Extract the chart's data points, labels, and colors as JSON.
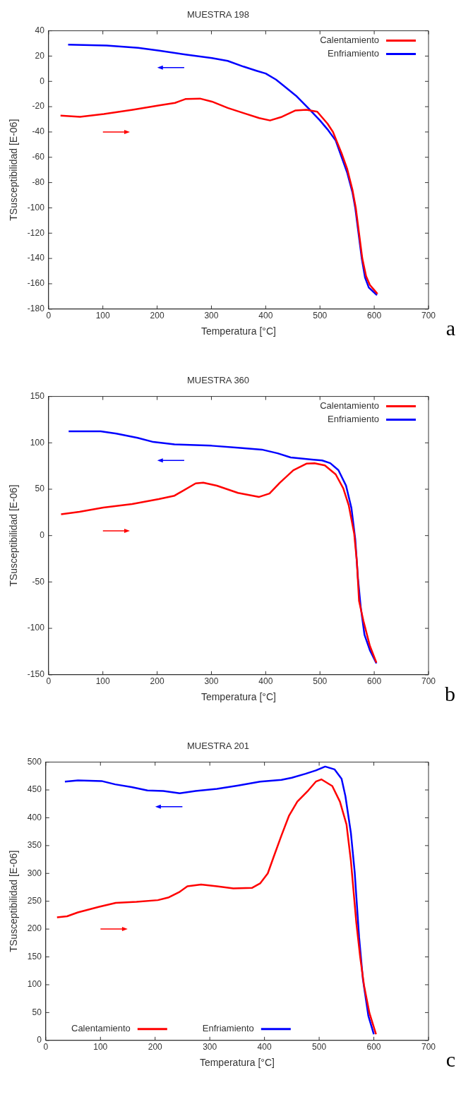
{
  "chart_data": [
    {
      "type": "line",
      "title": "MUESTRA 198",
      "xlabel": "Temperatura [°C]",
      "ylabel": "TSusceptibilidad [E-06]",
      "xlim": [
        0,
        700
      ],
      "xticks": [
        0,
        100,
        200,
        300,
        400,
        500,
        600,
        700
      ],
      "ylim": [
        -180,
        40
      ],
      "yticks": [
        -180,
        -160,
        -140,
        -120,
        -100,
        -80,
        -60,
        -40,
        -20,
        0,
        20,
        40
      ],
      "legend": "top right",
      "annotations": [
        "a"
      ],
      "series": [
        {
          "name": "Calentamiento",
          "color": "#ff0000",
          "x": [
            22,
            58,
            102,
            155,
            204,
            233,
            252,
            279,
            301,
            330,
            359,
            388,
            408,
            430,
            455,
            475,
            495,
            514,
            524,
            540,
            550,
            560,
            566,
            572,
            578,
            585,
            592,
            600,
            606
          ],
          "values": [
            -27,
            -28,
            -25.8,
            -22.5,
            -19,
            -17,
            -14,
            -13.6,
            -16,
            -21,
            -25,
            -29,
            -30.9,
            -28,
            -23,
            -22.5,
            -24,
            -33.5,
            -40,
            -57,
            -69,
            -86,
            -100,
            -120,
            -140,
            -154,
            -161,
            -165,
            -168
          ]
        },
        {
          "name": "Enfriamiento",
          "color": "#0000ff",
          "x": [
            36,
            107,
            165,
            204,
            252,
            301,
            330,
            359,
            383,
            400,
            419,
            434,
            456,
            480,
            500,
            514,
            529,
            540,
            550,
            560,
            565,
            571,
            577,
            583,
            590,
            600,
            605
          ],
          "values": [
            29,
            28.3,
            26.5,
            24.3,
            21.2,
            18.4,
            16.2,
            11.7,
            8.4,
            6.2,
            1.4,
            -3.7,
            -11.4,
            -21.8,
            -30.9,
            -38,
            -46.8,
            -60,
            -72,
            -88,
            -100,
            -120,
            -140,
            -155,
            -163,
            -167,
            -169
          ]
        }
      ]
    },
    {
      "type": "line",
      "title": "MUESTRA 360",
      "xlabel": "Temperatura [°C]",
      "ylabel": "TSusceptibilidad [E-06]",
      "xlim": [
        0,
        700
      ],
      "xticks": [
        0,
        100,
        200,
        300,
        400,
        500,
        600,
        700
      ],
      "ylim": [
        -150,
        150
      ],
      "yticks": [
        -150,
        -100,
        -50,
        0,
        50,
        100,
        150
      ],
      "legend": "top right",
      "annotations": [
        "b"
      ],
      "series": [
        {
          "name": "Calentamiento",
          "color": "#ff0000",
          "x": [
            23,
            57,
            101,
            154,
            203,
            232,
            271,
            285,
            310,
            349,
            388,
            407,
            426,
            451,
            475,
            490,
            509,
            529,
            543,
            553,
            563,
            568,
            572,
            580,
            592,
            604
          ],
          "values": [
            23,
            25.6,
            30.2,
            34,
            39.3,
            43,
            56.3,
            57,
            53.8,
            46,
            41.7,
            45.3,
            57,
            70.5,
            77.5,
            78,
            75.7,
            66,
            50.8,
            32.6,
            2.3,
            -28,
            -70.5,
            -91.7,
            -119,
            -137
          ]
        },
        {
          "name": "Enfriamiento",
          "color": "#0000ff",
          "x": [
            37,
            96,
            125,
            164,
            193,
            232,
            300,
            349,
            393,
            422,
            446,
            485,
            504,
            519,
            534,
            548,
            558,
            565,
            570,
            575,
            582,
            592,
            604
          ],
          "values": [
            112.4,
            112.4,
            110,
            105.4,
            100.9,
            98.4,
            96.9,
            94.8,
            92.7,
            88.7,
            84.2,
            82,
            81,
            78.1,
            70.5,
            53.9,
            29.6,
            -3.8,
            -46,
            -76.6,
            -106.9,
            -123.6,
            -137.8
          ]
        }
      ]
    },
    {
      "type": "line",
      "title": "MUESTRA 201",
      "xlabel": "Temperatura [°C]",
      "ylabel": "TSusceptibilidad [E-06]",
      "xlim": [
        0,
        700
      ],
      "xticks": [
        0,
        100,
        200,
        300,
        400,
        500,
        600,
        700
      ],
      "ylim": [
        0,
        500
      ],
      "yticks": [
        0,
        50,
        100,
        150,
        200,
        250,
        300,
        350,
        400,
        450,
        500
      ],
      "legend": "bottom",
      "annotations": [
        "c"
      ],
      "series": [
        {
          "name": "Calentamiento",
          "color": "#ff0000",
          "x": [
            20.6,
            39,
            58.7,
            97.9,
            128,
            166,
            205,
            225,
            245,
            259,
            284,
            313,
            343,
            377,
            392,
            406,
            418,
            431,
            445,
            460,
            480,
            494,
            504,
            524,
            538,
            550,
            558,
            568,
            575,
            582,
            592,
            604
          ],
          "values": [
            221,
            223,
            230,
            240,
            247,
            249,
            252,
            257,
            267,
            277,
            280,
            277,
            273,
            274,
            282,
            300,
            333,
            368,
            404,
            429,
            449,
            465,
            469,
            457,
            429,
            388,
            323,
            211,
            150,
            99,
            49,
            11
          ]
        },
        {
          "name": "Enfriamiento",
          "color": "#0000ff",
          "x": [
            35,
            59,
            102,
            127,
            157,
            186,
            215,
            245,
            274,
            313,
            352,
            392,
            431,
            450,
            475,
            494,
            511,
            528,
            541,
            548,
            558,
            565,
            573,
            580,
            590,
            600
          ],
          "values": [
            465,
            467,
            466,
            460,
            455,
            449,
            448,
            444,
            448,
            452,
            458,
            465,
            468,
            472,
            479,
            485,
            492,
            487,
            470,
            439,
            373,
            302,
            186,
            110,
            44,
            11
          ]
        }
      ]
    }
  ]
}
